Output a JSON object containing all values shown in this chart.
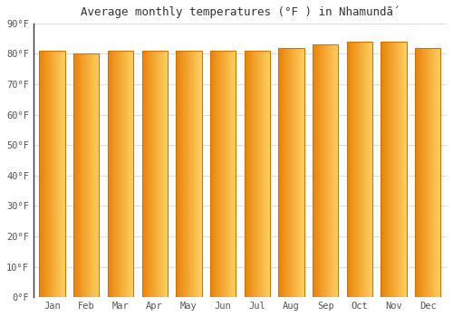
{
  "title": "Average monthly temperatures (°F ) in Nhamundã́",
  "months": [
    "Jan",
    "Feb",
    "Mar",
    "Apr",
    "May",
    "Jun",
    "Jul",
    "Aug",
    "Sep",
    "Oct",
    "Nov",
    "Dec"
  ],
  "values": [
    81,
    80,
    81,
    81,
    81,
    81,
    81,
    82,
    83,
    84,
    84,
    82
  ],
  "bar_color_left": "#E8820A",
  "bar_color_right": "#FFD060",
  "bar_edge_color": "#CC7700",
  "background_color": "#FFFFFF",
  "plot_bg_color": "#FFFFFF",
  "grid_color": "#DDDDDD",
  "spine_color": "#333333",
  "ylim": [
    0,
    90
  ],
  "yticks": [
    0,
    10,
    20,
    30,
    40,
    50,
    60,
    70,
    80,
    90
  ],
  "title_fontsize": 9,
  "tick_fontsize": 7.5,
  "bar_width": 0.75
}
